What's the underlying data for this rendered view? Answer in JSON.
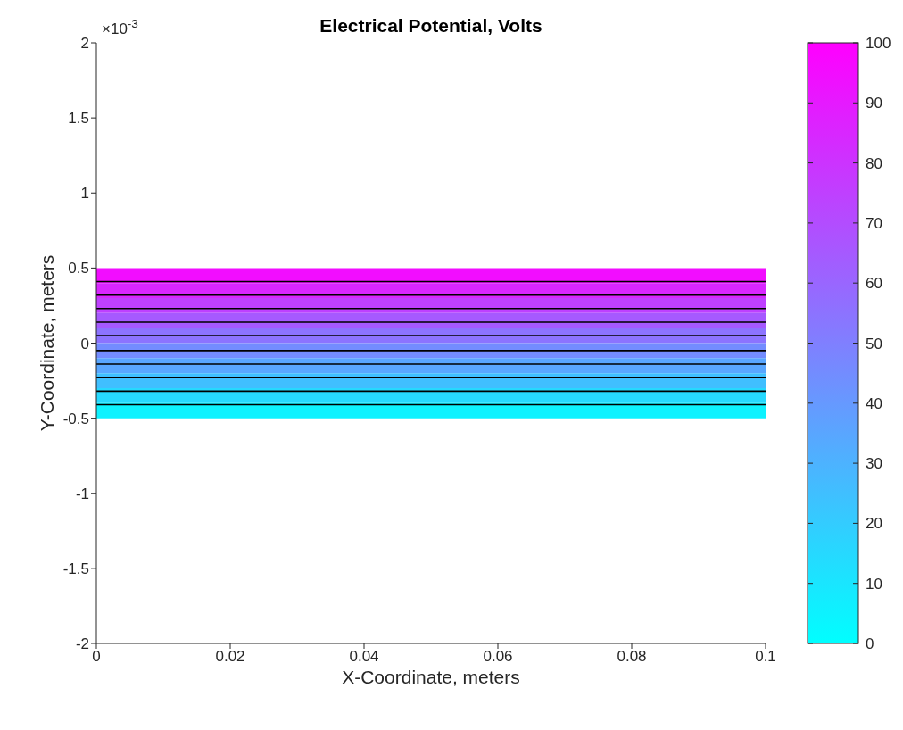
{
  "chart_data": {
    "type": "line",
    "title": "Electrical Potential, Volts",
    "xlabel": "X-Coordinate, meters",
    "ylabel": "Y-Coordinate, meters",
    "annotations": [
      "×10$^{-3}$"
    ],
    "xlim": [
      0,
      0.1
    ],
    "xticks": [
      0,
      0.02,
      0.04,
      0.06,
      0.08,
      0.1
    ],
    "ylim": [
      -2,
      2
    ],
    "yticks": [
      -2,
      -1.5,
      -1,
      -0.5,
      0,
      0.5,
      1,
      1.5,
      2
    ],
    "x": [
      0,
      0.1
    ],
    "series": [
      {
        "color": "#000000",
        "values": [
          0.41,
          0.41
        ]
      },
      {
        "color": "#000000",
        "values": [
          0.32,
          0.32
        ]
      },
      {
        "color": "#000000",
        "values": [
          0.23,
          0.23
        ]
      },
      {
        "color": "#000000",
        "values": [
          0.14,
          0.14
        ]
      },
      {
        "color": "#000000",
        "values": [
          0.05,
          0.05
        ]
      },
      {
        "color": "#000000",
        "values": [
          -0.05,
          -0.05
        ]
      },
      {
        "color": "#000000",
        "values": [
          -0.14,
          -0.14
        ]
      },
      {
        "color": "#000000",
        "values": [
          -0.23,
          -0.23
        ]
      },
      {
        "color": "#000000",
        "values": [
          -0.32,
          -0.32
        ]
      },
      {
        "color": "#000000",
        "values": [
          -0.41,
          -0.41
        ]
      }
    ],
    "marker": "none",
    "bands": [
      {
        "axis": "y",
        "from": 0.4,
        "to": 0.5,
        "color": "#f20dff"
      },
      {
        "axis": "y",
        "from": 0.3,
        "to": 0.4,
        "color": "#d926ff"
      },
      {
        "axis": "y",
        "from": 0.2,
        "to": 0.3,
        "color": "#bf40ff"
      },
      {
        "axis": "y",
        "from": 0.1,
        "to": 0.2,
        "color": "#a659ff"
      },
      {
        "axis": "y",
        "from": 0,
        "to": 0.1,
        "color": "#8c73ff"
      },
      {
        "axis": "y",
        "from": -0.1,
        "to": 0,
        "color": "#738cff"
      },
      {
        "axis": "y",
        "from": -0.2,
        "to": -0.1,
        "color": "#59a6ff"
      },
      {
        "axis": "y",
        "from": -0.3,
        "to": -0.2,
        "color": "#40bfff"
      },
      {
        "axis": "y",
        "from": -0.4,
        "to": -0.3,
        "color": "#26d9ff"
      },
      {
        "axis": "y",
        "from": -0.5,
        "to": -0.4,
        "color": "#0df2ff"
      }
    ],
    "colors": [
      "#00ffff",
      "#ff00ff"
    ],
    "clim": [
      0,
      100
    ],
    "cticks": [
      0,
      10,
      20,
      30,
      40,
      50,
      60,
      70,
      80,
      90,
      100
    ],
    "grid": false
  }
}
